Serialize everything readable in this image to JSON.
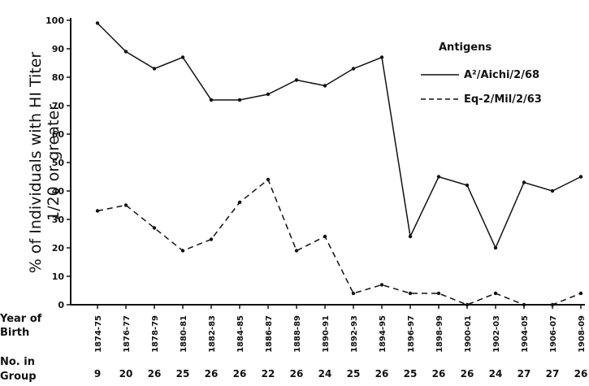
{
  "chart_data": {
    "type": "line",
    "ylabel_line1": "% of Individuals with HI Titer",
    "ylabel_line2": "1/20 or greater",
    "ylim": [
      0,
      100
    ],
    "yticks": [
      0,
      10,
      20,
      30,
      40,
      50,
      60,
      70,
      80,
      90,
      100
    ],
    "x_row_label_1": "Year of",
    "x_row_label_2": "Birth",
    "count_row_label_1": "No. in",
    "count_row_label_2": "Group",
    "categories": [
      "1874-75",
      "1876-77",
      "1878-79",
      "1880-81",
      "1882-83",
      "1884-85",
      "1886-87",
      "1888-89",
      "1890-91",
      "1892-93",
      "1894-95",
      "1896-97",
      "1898-99",
      "1900-01",
      "1902-03",
      "1904-05",
      "1906-07",
      "1908-09"
    ],
    "counts": [
      "9",
      "20",
      "26",
      "25",
      "26",
      "26",
      "22",
      "26",
      "24",
      "25",
      "26",
      "25",
      "26",
      "26",
      "24",
      "27",
      "27",
      "26"
    ],
    "legend_title": "Antigens",
    "legend_position": "top-right",
    "series": [
      {
        "name": "A²/Aichi/2/68",
        "style": "solid",
        "values": [
          99,
          89,
          83,
          87,
          72,
          72,
          74,
          79,
          77,
          83,
          87,
          24,
          45,
          42,
          20,
          43,
          40,
          45
        ]
      },
      {
        "name": "Eq-2/Mil/2/63",
        "style": "dashed",
        "values": [
          33,
          35,
          27,
          19,
          23,
          36,
          44,
          19,
          24,
          4,
          7,
          4,
          4,
          0,
          4,
          0,
          0,
          4
        ]
      }
    ],
    "grid": false
  }
}
